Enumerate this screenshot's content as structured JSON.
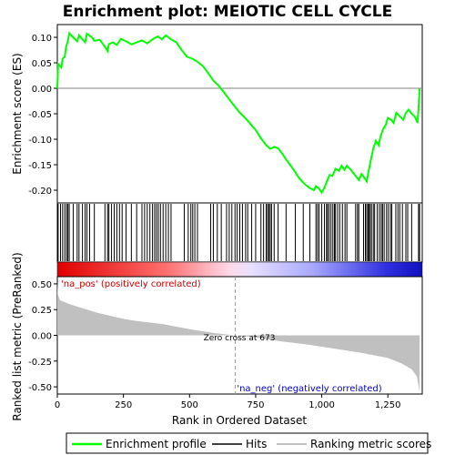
{
  "chart_data": {
    "type": "line",
    "title": "Enrichment plot: MEIOTIC CELL CYCLE",
    "xlabel": "Rank in Ordered Dataset",
    "ylabel_top": "Enrichment score (ES)",
    "ylabel_bottom": "Ranked list metric (PreRanked)",
    "xlim": [
      0,
      1380
    ],
    "x_ticks": [
      0,
      250,
      500,
      750,
      1000,
      1250
    ],
    "x_tick_labels": [
      "0",
      "250",
      "500",
      "750",
      "1,000",
      "1,250"
    ],
    "es_ylim": [
      -0.225,
      0.125
    ],
    "es_ticks": [
      0.1,
      0.05,
      0.0,
      -0.05,
      -0.1,
      -0.15,
      -0.2
    ],
    "es_tick_labels": [
      "0.10",
      "0.05",
      "0.00",
      "-0.05",
      "-0.10",
      "-0.15",
      "-0.20"
    ],
    "metric_ylim": [
      -0.57,
      0.57
    ],
    "metric_ticks": [
      0.5,
      0.25,
      0.0,
      -0.25,
      -0.5
    ],
    "metric_tick_labels": [
      "0.50",
      "0.25",
      "0.00",
      "-0.25",
      "-0.50"
    ],
    "series": [
      {
        "name": "Enrichment profile",
        "color": "#00ff00",
        "points": [
          [
            0,
            0.0
          ],
          [
            3,
            0.048
          ],
          [
            15,
            0.041
          ],
          [
            20,
            0.058
          ],
          [
            28,
            0.062
          ],
          [
            33,
            0.081
          ],
          [
            40,
            0.093
          ],
          [
            45,
            0.108
          ],
          [
            60,
            0.1
          ],
          [
            75,
            0.092
          ],
          [
            82,
            0.104
          ],
          [
            95,
            0.096
          ],
          [
            105,
            0.09
          ],
          [
            112,
            0.107
          ],
          [
            130,
            0.1
          ],
          [
            140,
            0.093
          ],
          [
            160,
            0.095
          ],
          [
            175,
            0.085
          ],
          [
            190,
            0.073
          ],
          [
            195,
            0.087
          ],
          [
            210,
            0.09
          ],
          [
            225,
            0.085
          ],
          [
            240,
            0.097
          ],
          [
            260,
            0.092
          ],
          [
            280,
            0.086
          ],
          [
            300,
            0.09
          ],
          [
            320,
            0.094
          ],
          [
            340,
            0.088
          ],
          [
            360,
            0.096
          ],
          [
            380,
            0.102
          ],
          [
            395,
            0.096
          ],
          [
            410,
            0.104
          ],
          [
            430,
            0.096
          ],
          [
            450,
            0.09
          ],
          [
            470,
            0.075
          ],
          [
            490,
            0.062
          ],
          [
            510,
            0.058
          ],
          [
            530,
            0.052
          ],
          [
            550,
            0.044
          ],
          [
            570,
            0.03
          ],
          [
            590,
            0.015
          ],
          [
            610,
            0.005
          ],
          [
            630,
            -0.008
          ],
          [
            650,
            -0.022
          ],
          [
            670,
            -0.035
          ],
          [
            690,
            -0.048
          ],
          [
            710,
            -0.058
          ],
          [
            730,
            -0.07
          ],
          [
            750,
            -0.082
          ],
          [
            770,
            -0.098
          ],
          [
            790,
            -0.112
          ],
          [
            805,
            -0.119
          ],
          [
            820,
            -0.115
          ],
          [
            835,
            -0.118
          ],
          [
            850,
            -0.128
          ],
          [
            865,
            -0.14
          ],
          [
            880,
            -0.15
          ],
          [
            900,
            -0.165
          ],
          [
            915,
            -0.177
          ],
          [
            935,
            -0.188
          ],
          [
            955,
            -0.196
          ],
          [
            970,
            -0.2
          ],
          [
            978,
            -0.192
          ],
          [
            990,
            -0.197
          ],
          [
            1000,
            -0.205
          ],
          [
            1010,
            -0.195
          ],
          [
            1020,
            -0.182
          ],
          [
            1030,
            -0.17
          ],
          [
            1040,
            -0.172
          ],
          [
            1052,
            -0.158
          ],
          [
            1065,
            -0.162
          ],
          [
            1075,
            -0.152
          ],
          [
            1085,
            -0.16
          ],
          [
            1095,
            -0.152
          ],
          [
            1110,
            -0.16
          ],
          [
            1125,
            -0.17
          ],
          [
            1140,
            -0.18
          ],
          [
            1150,
            -0.168
          ],
          [
            1160,
            -0.175
          ],
          [
            1170,
            -0.183
          ],
          [
            1178,
            -0.16
          ],
          [
            1186,
            -0.14
          ],
          [
            1195,
            -0.118
          ],
          [
            1205,
            -0.103
          ],
          [
            1215,
            -0.112
          ],
          [
            1222,
            -0.095
          ],
          [
            1232,
            -0.08
          ],
          [
            1242,
            -0.072
          ],
          [
            1250,
            -0.058
          ],
          [
            1262,
            -0.062
          ],
          [
            1272,
            -0.068
          ],
          [
            1282,
            -0.048
          ],
          [
            1295,
            -0.055
          ],
          [
            1308,
            -0.062
          ],
          [
            1318,
            -0.048
          ],
          [
            1328,
            -0.042
          ],
          [
            1340,
            -0.05
          ],
          [
            1352,
            -0.056
          ],
          [
            1362,
            -0.068
          ],
          [
            1366,
            -0.04
          ],
          [
            1370,
            0.0
          ]
        ]
      },
      {
        "name": "Hits",
        "color": "#000000"
      },
      {
        "name": "Ranking metric scores",
        "color": "#c0c0c0"
      }
    ],
    "hits": [
      3,
      12,
      20,
      28,
      35,
      40,
      45,
      60,
      75,
      82,
      95,
      105,
      112,
      122,
      140,
      180,
      190,
      195,
      205,
      215,
      225,
      235,
      245,
      260,
      280,
      300,
      320,
      330,
      340,
      350,
      360,
      368,
      375,
      382,
      390,
      400,
      410,
      420,
      430,
      480,
      495,
      505,
      512,
      520,
      530,
      580,
      590,
      605,
      620,
      640,
      650,
      660,
      672,
      680,
      690,
      700,
      712,
      720,
      735,
      750,
      770,
      780,
      790,
      795,
      800,
      805,
      810,
      820,
      835,
      865,
      900,
      930,
      955,
      978,
      984,
      990,
      1000,
      1010,
      1018,
      1022,
      1028,
      1035,
      1042,
      1048,
      1052,
      1060,
      1068,
      1078,
      1088,
      1095,
      1128,
      1135,
      1140,
      1158,
      1165,
      1170,
      1175,
      1178,
      1183,
      1188,
      1195,
      1200,
      1210,
      1218,
      1225,
      1230,
      1236,
      1245,
      1252,
      1260,
      1265,
      1280,
      1288,
      1295,
      1305,
      1318,
      1325,
      1340,
      1366,
      1370
    ],
    "metric_curve": [
      [
        0,
        0.52
      ],
      [
        2,
        0.4
      ],
      [
        10,
        0.34
      ],
      [
        50,
        0.3
      ],
      [
        100,
        0.26
      ],
      [
        150,
        0.22
      ],
      [
        200,
        0.19
      ],
      [
        250,
        0.16
      ],
      [
        300,
        0.14
      ],
      [
        400,
        0.11
      ],
      [
        500,
        0.06
      ],
      [
        600,
        0.02
      ],
      [
        673,
        0.0
      ],
      [
        750,
        -0.02
      ],
      [
        850,
        -0.06
      ],
      [
        950,
        -0.09
      ],
      [
        1050,
        -0.13
      ],
      [
        1150,
        -0.17
      ],
      [
        1250,
        -0.22
      ],
      [
        1300,
        -0.27
      ],
      [
        1340,
        -0.33
      ],
      [
        1360,
        -0.4
      ],
      [
        1370,
        -0.55
      ]
    ],
    "annotations": {
      "na_pos": "'na_pos' (positively correlated)",
      "na_neg": "'na_neg' (negatively correlated)",
      "zero_cross": "Zero cross at 673",
      "zero_cross_x": 673
    },
    "legend": {
      "position": "bottom",
      "items": [
        "Enrichment profile",
        "Hits",
        "Ranking metric scores"
      ]
    }
  }
}
